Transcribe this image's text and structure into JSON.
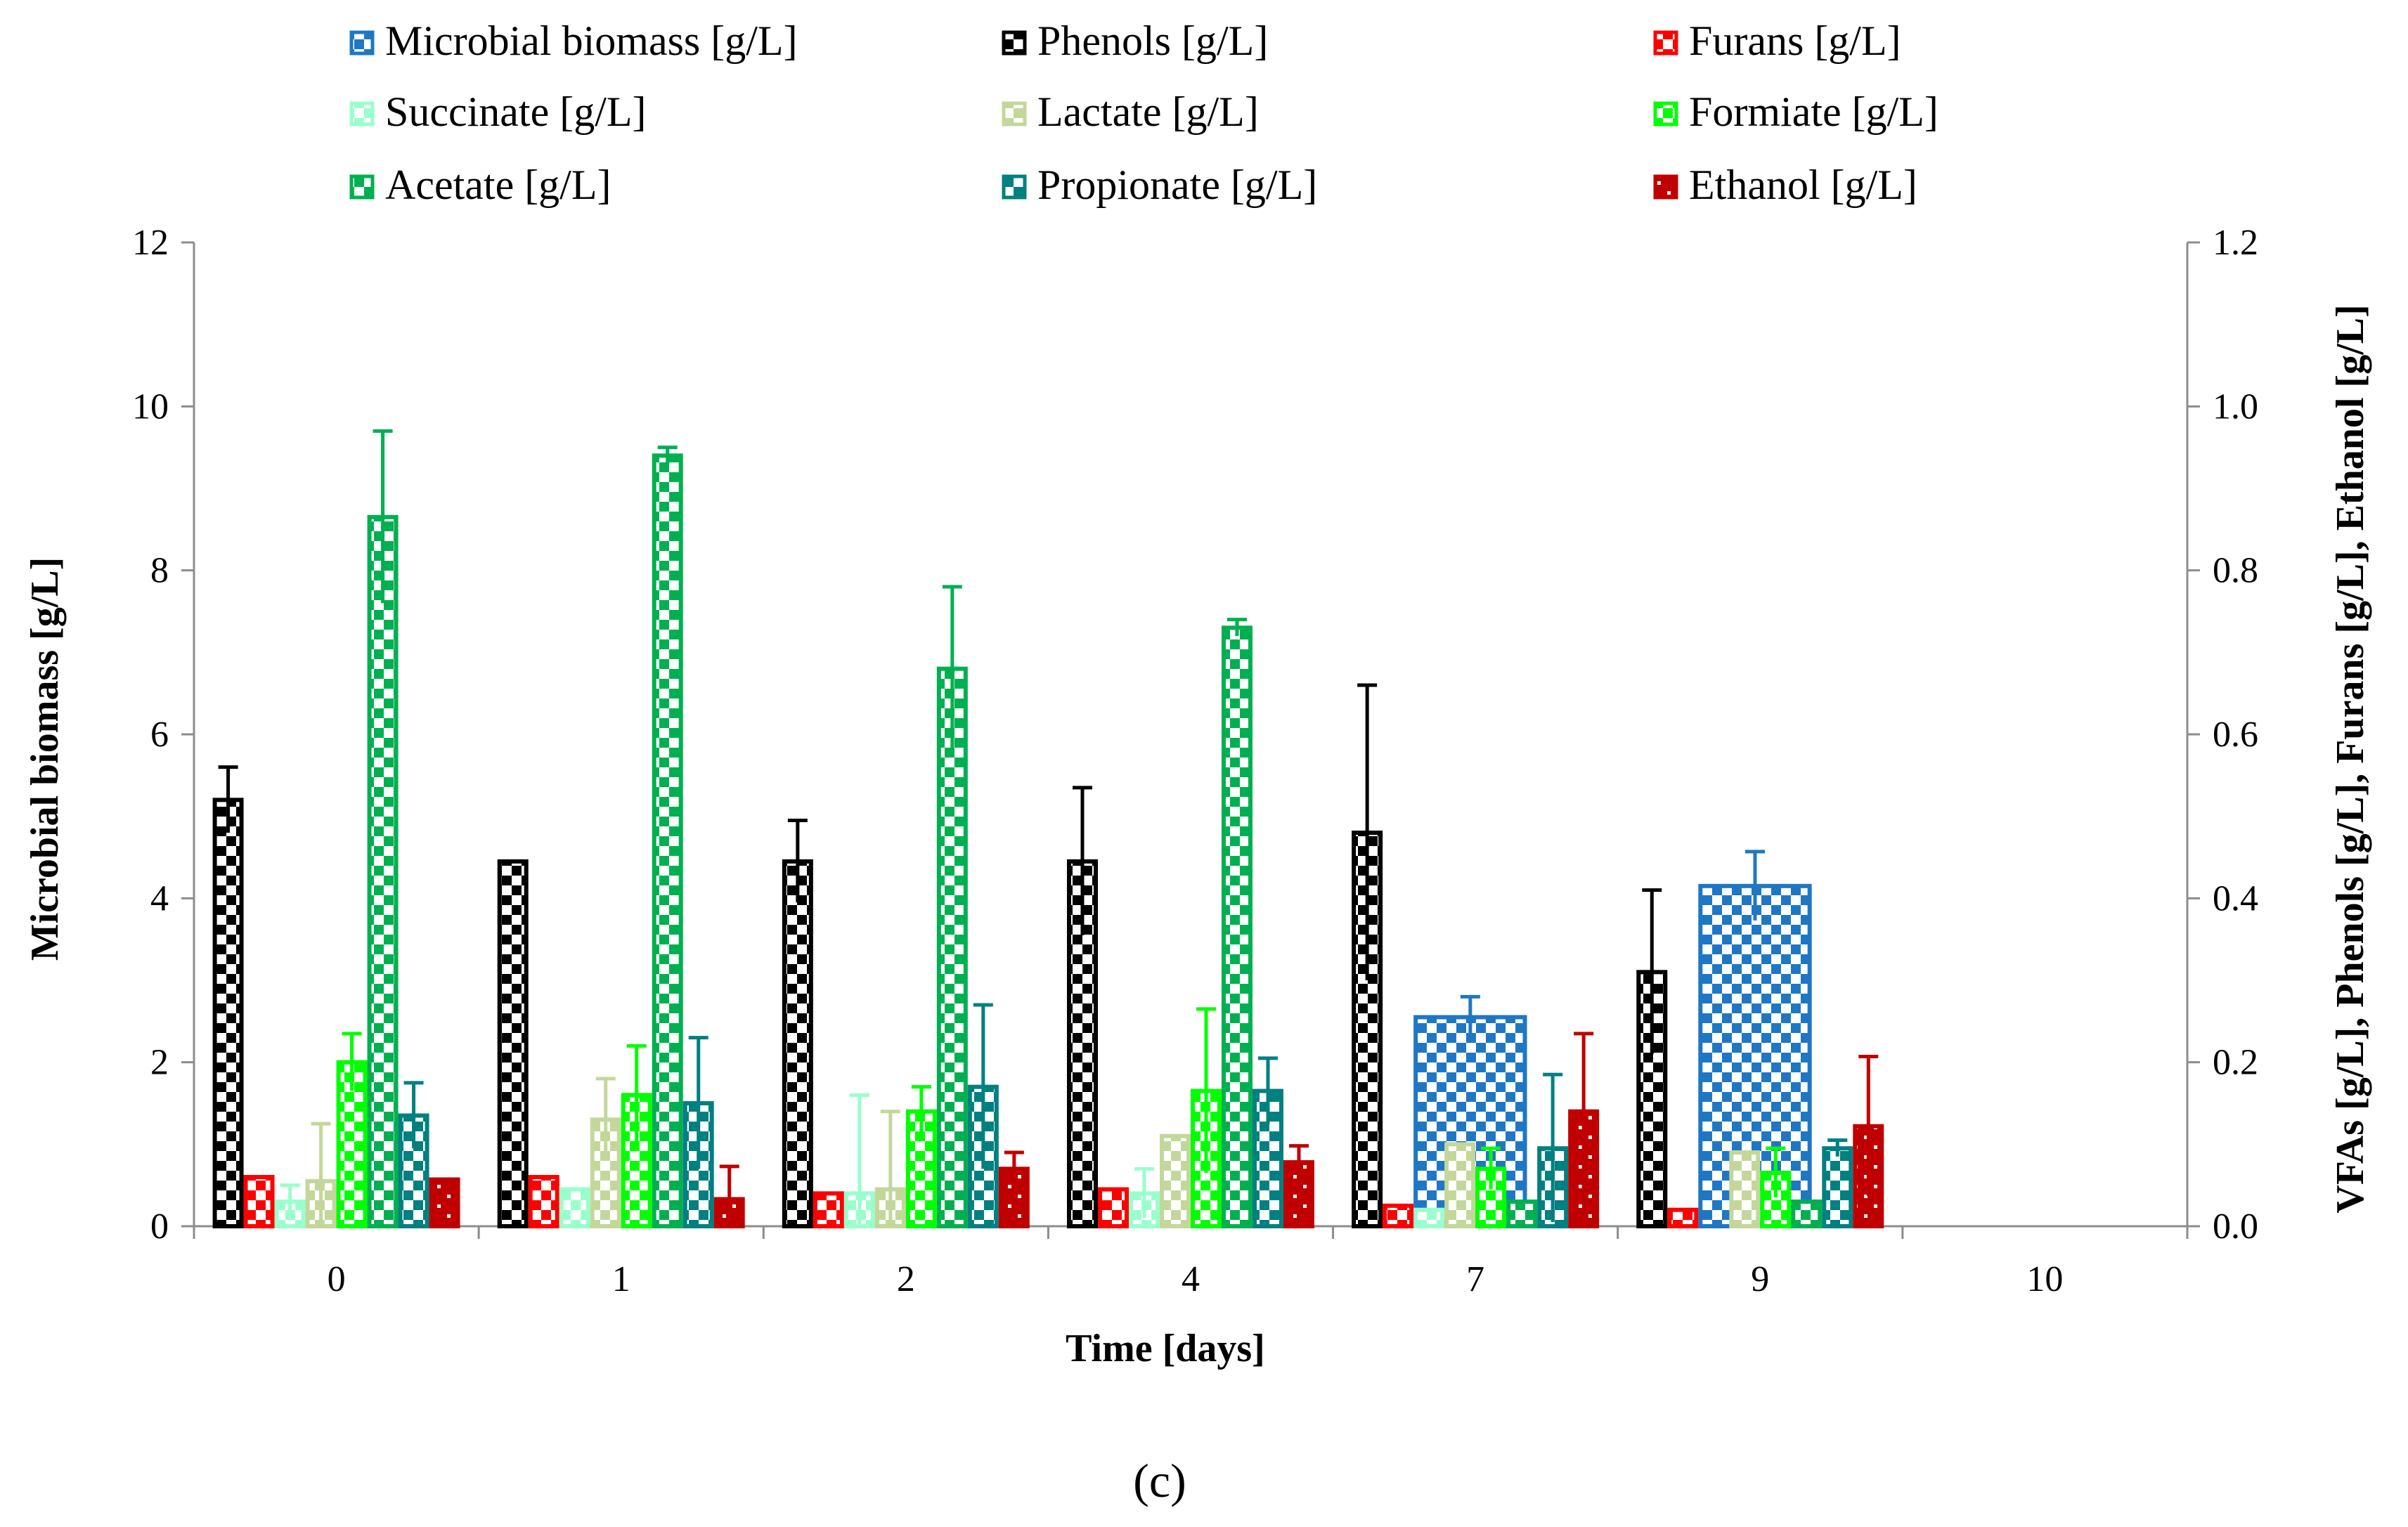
{
  "chart_data": {
    "type": "bar",
    "categories": [
      "0",
      "1",
      "2",
      "4",
      "7",
      "9",
      "10"
    ],
    "xlabel": "Time [days]",
    "ylabel_left": "Microbial biomass [g/L]",
    "ylabel_right": "VFAs [g/L], Phenols [g/L], Furans [g/L], Ethanol [g/L]",
    "ylim_left": [
      0,
      12
    ],
    "ylim_right": [
      0,
      1.2
    ],
    "yticks_left": [
      "0",
      "2",
      "4",
      "6",
      "8",
      "10",
      "12"
    ],
    "yticks_right": [
      "0.0",
      "0.2",
      "0.4",
      "0.6",
      "0.8",
      "1.0",
      "1.2"
    ],
    "grid": false,
    "legend_position": "top",
    "caption": "(c)",
    "series": [
      {
        "name": "Microbial biomass [g/L]",
        "axis": "left",
        "color": "#1f77c4",
        "pattern": "checker",
        "values": [
          null,
          null,
          null,
          null,
          2.55,
          4.15,
          null
        ],
        "errors": [
          null,
          null,
          null,
          null,
          0.25,
          0.42,
          null
        ]
      },
      {
        "name": "Phenols [g/L]",
        "axis": "right",
        "color": "#000000",
        "pattern": "checker",
        "values": [
          0.52,
          0.445,
          0.445,
          0.445,
          0.48,
          0.31,
          null
        ],
        "errors": [
          0.04,
          0.0,
          0.05,
          0.09,
          0.18,
          0.1,
          null
        ]
      },
      {
        "name": "Furans [g/L]",
        "axis": "right",
        "color": "#ff0000",
        "pattern": "checker",
        "values": [
          0.06,
          0.06,
          0.04,
          0.045,
          0.025,
          0.02,
          null
        ],
        "errors": [
          null,
          null,
          null,
          null,
          null,
          null,
          null
        ]
      },
      {
        "name": "Succinate [g/L]",
        "axis": "right",
        "color": "#99ffcc",
        "pattern": "checker",
        "values": [
          0.03,
          0.045,
          0.04,
          0.04,
          0.02,
          null,
          null
        ],
        "errors": [
          0.02,
          null,
          0.12,
          0.03,
          null,
          null,
          null
        ]
      },
      {
        "name": "Lactate [g/L]",
        "axis": "right",
        "color": "#c4d79b",
        "pattern": "checker",
        "values": [
          0.055,
          0.13,
          0.045,
          0.11,
          0.1,
          0.09,
          null
        ],
        "errors": [
          0.07,
          0.05,
          0.095,
          null,
          null,
          null,
          null
        ]
      },
      {
        "name": "Formiate [g/L]",
        "axis": "right",
        "color": "#00ff00",
        "pattern": "checker",
        "values": [
          0.2,
          0.16,
          0.14,
          0.165,
          0.07,
          0.065,
          null
        ],
        "errors": [
          0.035,
          0.06,
          0.03,
          0.1,
          0.025,
          0.03,
          null
        ]
      },
      {
        "name": "Acetate [g/L]",
        "axis": "right",
        "color": "#00b050",
        "pattern": "checker",
        "values": [
          0.865,
          0.94,
          0.68,
          0.73,
          0.03,
          0.03,
          null
        ],
        "errors": [
          0.105,
          0.01,
          0.1,
          0.01,
          null,
          null,
          null
        ]
      },
      {
        "name": "Propionate [g/L]",
        "axis": "right",
        "color": "#008080",
        "pattern": "checker",
        "values": [
          0.135,
          0.15,
          0.17,
          0.165,
          0.095,
          0.095,
          null
        ],
        "errors": [
          0.04,
          0.08,
          0.1,
          0.04,
          0.09,
          0.01,
          null
        ]
      },
      {
        "name": "Ethanol [g/L]",
        "axis": "right",
        "color": "#c00000",
        "pattern": "dots",
        "values": [
          0.057,
          0.033,
          0.07,
          0.078,
          0.14,
          0.122,
          null
        ],
        "errors": [
          null,
          0.04,
          0.02,
          0.02,
          0.095,
          0.085,
          null
        ]
      }
    ]
  }
}
